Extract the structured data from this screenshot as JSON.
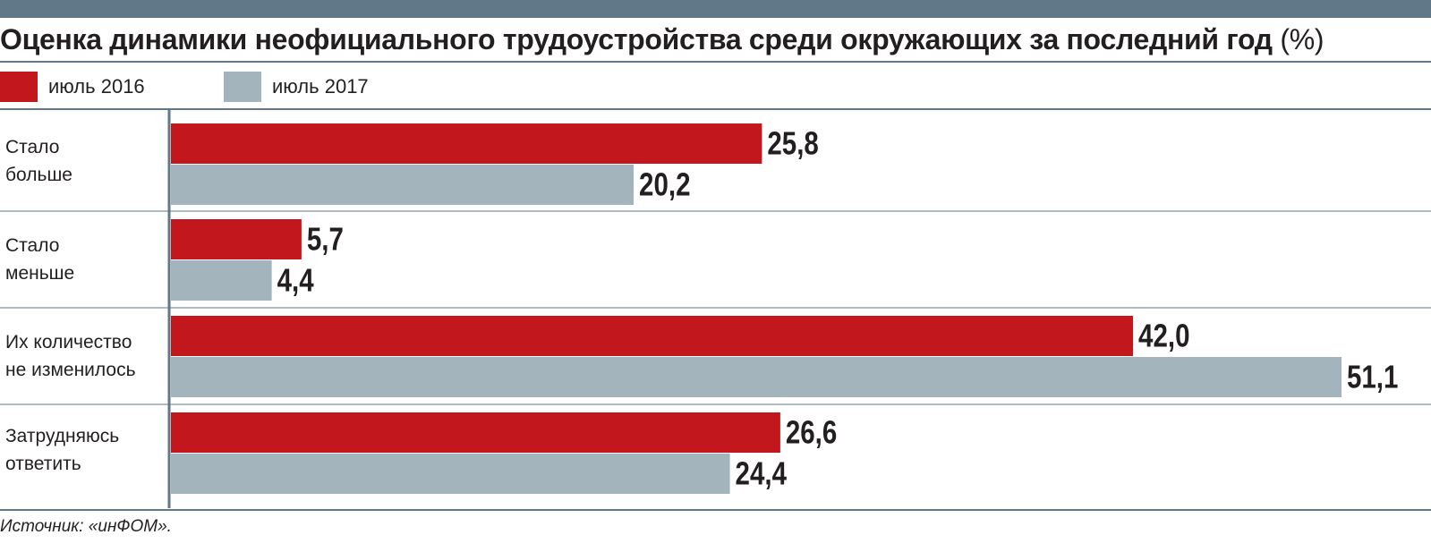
{
  "title": {
    "main": "Оценка динамики неофициального трудоустройства среди окружающих за последний год",
    "unit": "(%)"
  },
  "colors": {
    "series_2016": "#c1171d",
    "series_2017": "#a3b4bd",
    "rule": "#607887",
    "text": "#231f20"
  },
  "legend": [
    {
      "label": "июль 2016",
      "color": "#c1171d"
    },
    {
      "label": "июль 2017",
      "color": "#a3b4bd"
    }
  ],
  "chart_data": {
    "type": "bar",
    "orientation": "horizontal",
    "title": "Оценка динамики неофициального трудоустройства среди окружающих за последний год (%)",
    "categories": [
      "Стало\nбольше",
      "Стало\nменьше",
      "Их количество\nне изменилось",
      "Затрудняюсь\nответить"
    ],
    "series": [
      {
        "name": "июль 2016",
        "values": [
          25.8,
          5.7,
          42.0,
          26.6
        ],
        "labels": [
          "25,8",
          "5,7",
          "42,0",
          "26,6"
        ]
      },
      {
        "name": "июль 2017",
        "values": [
          20.2,
          4.4,
          51.1,
          24.4
        ],
        "labels": [
          "20,2",
          "4,4",
          "51,1",
          "24,4"
        ]
      }
    ],
    "xlim": [
      0,
      51.1
    ],
    "grid": false,
    "legend_position": "top-left"
  },
  "source": "Источник: «инФОМ»."
}
